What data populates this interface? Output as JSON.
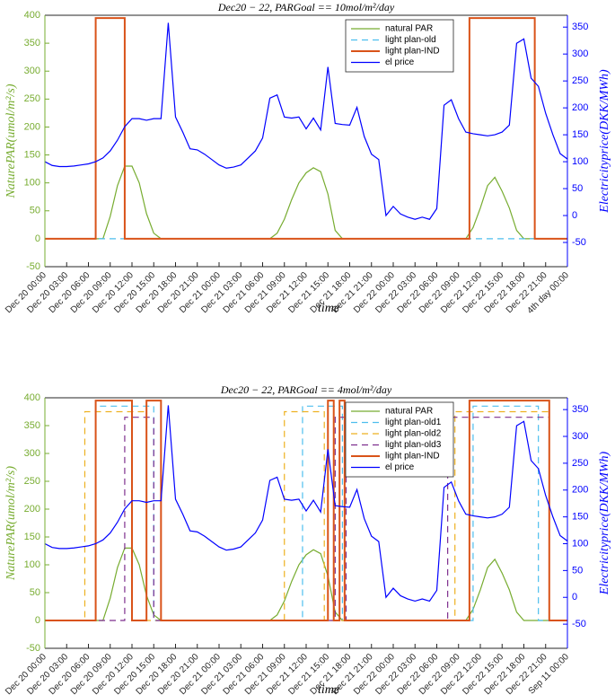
{
  "chart_data": [
    {
      "type": "line",
      "title": "Dec20 − 22, PARGoal == 10mol/m²/day",
      "xlabel": "time",
      "ylabel": "NaturePAR(umol/m²/s)",
      "y2label": "Electricityprice(DKK/MWh)",
      "y_color": "#77ac30",
      "y2_color": "#0000ff",
      "legend": "upper right",
      "grid": false,
      "xlim": [
        0,
        72
      ],
      "ylim": [
        -50,
        400
      ],
      "y2lim": [
        -95,
        372
      ],
      "yticks": [
        -50,
        0,
        50,
        100,
        150,
        200,
        250,
        300,
        350,
        400
      ],
      "y2ticks": [
        -50,
        0,
        50,
        100,
        150,
        200,
        250,
        300,
        350
      ],
      "xticks": [
        {
          "value": 0,
          "label": "Dec 20 00:00"
        },
        {
          "value": 3,
          "label": "Dec 20 03:00"
        },
        {
          "value": 6,
          "label": "Dec 20 06:00"
        },
        {
          "value": 9,
          "label": "Dec 20 09:00"
        },
        {
          "value": 12,
          "label": "Dec 20 12:00"
        },
        {
          "value": 15,
          "label": "Dec 20 15:00"
        },
        {
          "value": 18,
          "label": "Dec 20 18:00"
        },
        {
          "value": 21,
          "label": "Dec 20 21:00"
        },
        {
          "value": 24,
          "label": "Dec 21 00:00"
        },
        {
          "value": 27,
          "label": "Dec 21 03:00"
        },
        {
          "value": 30,
          "label": "Dec 21 06:00"
        },
        {
          "value": 33,
          "label": "Dec 21 09:00"
        },
        {
          "value": 36,
          "label": "Dec 21 12:00"
        },
        {
          "value": 39,
          "label": "Dec 21 15:00"
        },
        {
          "value": 42,
          "label": "Dec 21 18:00"
        },
        {
          "value": 45,
          "label": "Dec 21 21:00"
        },
        {
          "value": 48,
          "label": "Dec 22 00:00"
        },
        {
          "value": 51,
          "label": "Dec 22 03:00"
        },
        {
          "value": 54,
          "label": "Dec 22 06:00"
        },
        {
          "value": 57,
          "label": "Dec 22 09:00"
        },
        {
          "value": 60,
          "label": "Dec 22 12:00"
        },
        {
          "value": 63,
          "label": "Dec 22 15:00"
        },
        {
          "value": 66,
          "label": "Dec 22 18:00"
        },
        {
          "value": 69,
          "label": "Dec 22 21:00"
        },
        {
          "value": 72,
          "label": "4th day 00:00"
        }
      ],
      "x": [
        0,
        1,
        2,
        3,
        4,
        5,
        6,
        7,
        8,
        9,
        10,
        11,
        12,
        13,
        14,
        15,
        16,
        17,
        18,
        19,
        20,
        21,
        22,
        23,
        24,
        25,
        26,
        27,
        28,
        29,
        30,
        31,
        32,
        33,
        34,
        35,
        36,
        37,
        38,
        39,
        40,
        41,
        42,
        43,
        44,
        45,
        46,
        47,
        48,
        49,
        50,
        51,
        52,
        53,
        54,
        55,
        56,
        57,
        58,
        59,
        60,
        61,
        62,
        63,
        64,
        65,
        66,
        67,
        68,
        69,
        70,
        71,
        72
      ],
      "series": [
        {
          "name": "natural PAR",
          "color": "#77ac30",
          "linestyle": "-",
          "axis": "y",
          "values": [
            0,
            0,
            0,
            0,
            0,
            0,
            0,
            0,
            0,
            40,
            95,
            130,
            130,
            100,
            45,
            10,
            0,
            0,
            0,
            0,
            0,
            0,
            0,
            0,
            0,
            0,
            0,
            0,
            0,
            0,
            0,
            0,
            10,
            35,
            70,
            100,
            118,
            127,
            120,
            80,
            15,
            0,
            0,
            0,
            0,
            0,
            0,
            0,
            0,
            0,
            0,
            0,
            0,
            0,
            0,
            0,
            0,
            0,
            0,
            20,
            55,
            95,
            110,
            85,
            55,
            15,
            0,
            0,
            0,
            0,
            0,
            0,
            0
          ]
        },
        {
          "name": "light plan-old",
          "color": "#4dbeee",
          "linestyle": "--",
          "axis": "y",
          "x": [
            0,
            72
          ],
          "values": [
            0,
            0
          ]
        },
        {
          "name": "light plan-IND",
          "color": "#d95319",
          "linestyle": "-",
          "axis": "y",
          "x": [
            0,
            7,
            7,
            11,
            11,
            58.5,
            58.5,
            67.5,
            67.5,
            72
          ],
          "values": [
            0,
            0,
            395,
            395,
            0,
            0,
            395,
            395,
            0,
            0
          ]
        },
        {
          "name": "el price",
          "color": "#0000ff",
          "linestyle": "-",
          "axis": "y2",
          "values": [
            100,
            93,
            91,
            91,
            92,
            94,
            96,
            100,
            107,
            120,
            140,
            165,
            180,
            180,
            177,
            180,
            180,
            358,
            183,
            155,
            124,
            122,
            114,
            104,
            94,
            88,
            90,
            94,
            107,
            120,
            144,
            218,
            224,
            183,
            181,
            183,
            161,
            181,
            159,
            276,
            171,
            169,
            168,
            201,
            147,
            114,
            104,
            0,
            17,
            3,
            -3,
            -7,
            -3,
            -7,
            13,
            205,
            215,
            180,
            155,
            152,
            150,
            148,
            150,
            155,
            168,
            320,
            328,
            255,
            240,
            190,
            150,
            115,
            105
          ]
        }
      ]
    },
    {
      "type": "line",
      "title": "Dec20 − 22, PARGoal == 4mol/m²/day",
      "xlabel": "time",
      "ylabel": "NaturePAR(umol/m²/s)",
      "y2label": "Electricityprice(DKK/MWh)",
      "y_color": "#77ac30",
      "y2_color": "#0000ff",
      "legend": "upper right",
      "grid": false,
      "xlim": [
        0,
        72
      ],
      "ylim": [
        -50,
        400
      ],
      "y2lim": [
        -95,
        372
      ],
      "yticks": [
        -50,
        0,
        50,
        100,
        150,
        200,
        250,
        300,
        350,
        400
      ],
      "y2ticks": [
        -50,
        0,
        50,
        100,
        150,
        200,
        250,
        300,
        350
      ],
      "xticks": [
        {
          "value": 0,
          "label": "Dec 20 00:00"
        },
        {
          "value": 3,
          "label": "Dec 20 03:00"
        },
        {
          "value": 6,
          "label": "Dec 20 06:00"
        },
        {
          "value": 9,
          "label": "Dec 20 09:00"
        },
        {
          "value": 12,
          "label": "Dec 20 12:00"
        },
        {
          "value": 15,
          "label": "Dec 20 15:00"
        },
        {
          "value": 18,
          "label": "Dec 20 18:00"
        },
        {
          "value": 21,
          "label": "Dec 20 21:00"
        },
        {
          "value": 24,
          "label": "Dec 21 00:00"
        },
        {
          "value": 27,
          "label": "Dec 21 03:00"
        },
        {
          "value": 30,
          "label": "Dec 21 06:00"
        },
        {
          "value": 33,
          "label": "Dec 21 09:00"
        },
        {
          "value": 36,
          "label": "Dec 21 12:00"
        },
        {
          "value": 39,
          "label": "Dec 21 15:00"
        },
        {
          "value": 42,
          "label": "Dec 21 18:00"
        },
        {
          "value": 45,
          "label": "Dec 21 21:00"
        },
        {
          "value": 48,
          "label": "Dec 22 00:00"
        },
        {
          "value": 51,
          "label": "Dec 22 03:00"
        },
        {
          "value": 54,
          "label": "Dec 22 06:00"
        },
        {
          "value": 57,
          "label": "Dec 22 09:00"
        },
        {
          "value": 60,
          "label": "Dec 22 12:00"
        },
        {
          "value": 63,
          "label": "Dec 22 15:00"
        },
        {
          "value": 66,
          "label": "Dec 22 18:00"
        },
        {
          "value": 69,
          "label": "Dec 22 21:00"
        },
        {
          "value": 72,
          "label": "Sep 11 00:00"
        }
      ],
      "x": [
        0,
        1,
        2,
        3,
        4,
        5,
        6,
        7,
        8,
        9,
        10,
        11,
        12,
        13,
        14,
        15,
        16,
        17,
        18,
        19,
        20,
        21,
        22,
        23,
        24,
        25,
        26,
        27,
        28,
        29,
        30,
        31,
        32,
        33,
        34,
        35,
        36,
        37,
        38,
        39,
        40,
        41,
        42,
        43,
        44,
        45,
        46,
        47,
        48,
        49,
        50,
        51,
        52,
        53,
        54,
        55,
        56,
        57,
        58,
        59,
        60,
        61,
        62,
        63,
        64,
        65,
        66,
        67,
        68,
        69,
        70,
        71,
        72
      ],
      "series": [
        {
          "name": "natural PAR",
          "color": "#77ac30",
          "linestyle": "-",
          "axis": "y",
          "values": [
            0,
            0,
            0,
            0,
            0,
            0,
            0,
            0,
            0,
            40,
            95,
            130,
            130,
            100,
            45,
            10,
            0,
            0,
            0,
            0,
            0,
            0,
            0,
            0,
            0,
            0,
            0,
            0,
            0,
            0,
            0,
            0,
            10,
            35,
            70,
            100,
            118,
            127,
            120,
            80,
            15,
            0,
            0,
            0,
            0,
            0,
            0,
            0,
            0,
            0,
            0,
            0,
            0,
            0,
            0,
            0,
            0,
            0,
            0,
            20,
            55,
            95,
            110,
            85,
            55,
            15,
            0,
            0,
            0,
            0,
            0,
            0,
            0
          ]
        },
        {
          "name": "light plan-old1",
          "color": "#4dbeee",
          "linestyle": "--",
          "axis": "y",
          "x": [
            0,
            7,
            7,
            15,
            15,
            35.5,
            35.5,
            41,
            41,
            59,
            59,
            68,
            68,
            72
          ],
          "values": [
            0,
            0,
            385,
            385,
            0,
            0,
            385,
            385,
            0,
            0,
            385,
            385,
            0,
            0
          ]
        },
        {
          "name": "light plan-old2",
          "color": "#edb120",
          "linestyle": "--",
          "axis": "y",
          "x": [
            0,
            5.5,
            5.5,
            14,
            14,
            33,
            33,
            38.5,
            38.5,
            56.5,
            56.5,
            69.5,
            69.5,
            72
          ],
          "values": [
            0,
            0,
            375,
            375,
            0,
            0,
            375,
            375,
            0,
            0,
            375,
            375,
            0,
            0
          ]
        },
        {
          "name": "light plan-old3",
          "color": "#7e2f8e",
          "linestyle": "--",
          "axis": "y",
          "x": [
            0,
            11,
            11,
            15,
            15,
            40,
            40,
            41.5,
            41.5,
            55.5,
            55.5,
            69.5,
            69.5,
            72
          ],
          "values": [
            0,
            0,
            365,
            365,
            0,
            0,
            365,
            365,
            0,
            0,
            365,
            365,
            0,
            0
          ]
        },
        {
          "name": "light plan-IND",
          "color": "#d95319",
          "linestyle": "-",
          "axis": "y",
          "x": [
            0,
            7,
            7,
            12,
            12,
            14,
            14,
            16,
            16,
            39,
            39,
            39.8,
            39.8,
            40.6,
            40.6,
            41.3,
            41.3,
            58.5,
            58.5,
            69.5,
            69.5,
            72
          ],
          "values": [
            0,
            0,
            395,
            395,
            0,
            0,
            395,
            395,
            0,
            0,
            395,
            395,
            0,
            0,
            395,
            395,
            0,
            0,
            395,
            395,
            0,
            0
          ]
        },
        {
          "name": "el price",
          "color": "#0000ff",
          "linestyle": "-",
          "axis": "y2",
          "values": [
            100,
            93,
            91,
            91,
            92,
            94,
            96,
            100,
            107,
            120,
            140,
            165,
            180,
            180,
            177,
            180,
            180,
            358,
            183,
            155,
            124,
            122,
            114,
            104,
            94,
            88,
            90,
            94,
            107,
            120,
            144,
            218,
            224,
            183,
            181,
            183,
            161,
            181,
            159,
            276,
            171,
            169,
            168,
            201,
            147,
            114,
            104,
            0,
            17,
            3,
            -3,
            -7,
            -3,
            -7,
            13,
            205,
            215,
            180,
            155,
            152,
            150,
            148,
            150,
            155,
            168,
            320,
            328,
            255,
            240,
            190,
            150,
            115,
            105
          ]
        }
      ]
    }
  ]
}
